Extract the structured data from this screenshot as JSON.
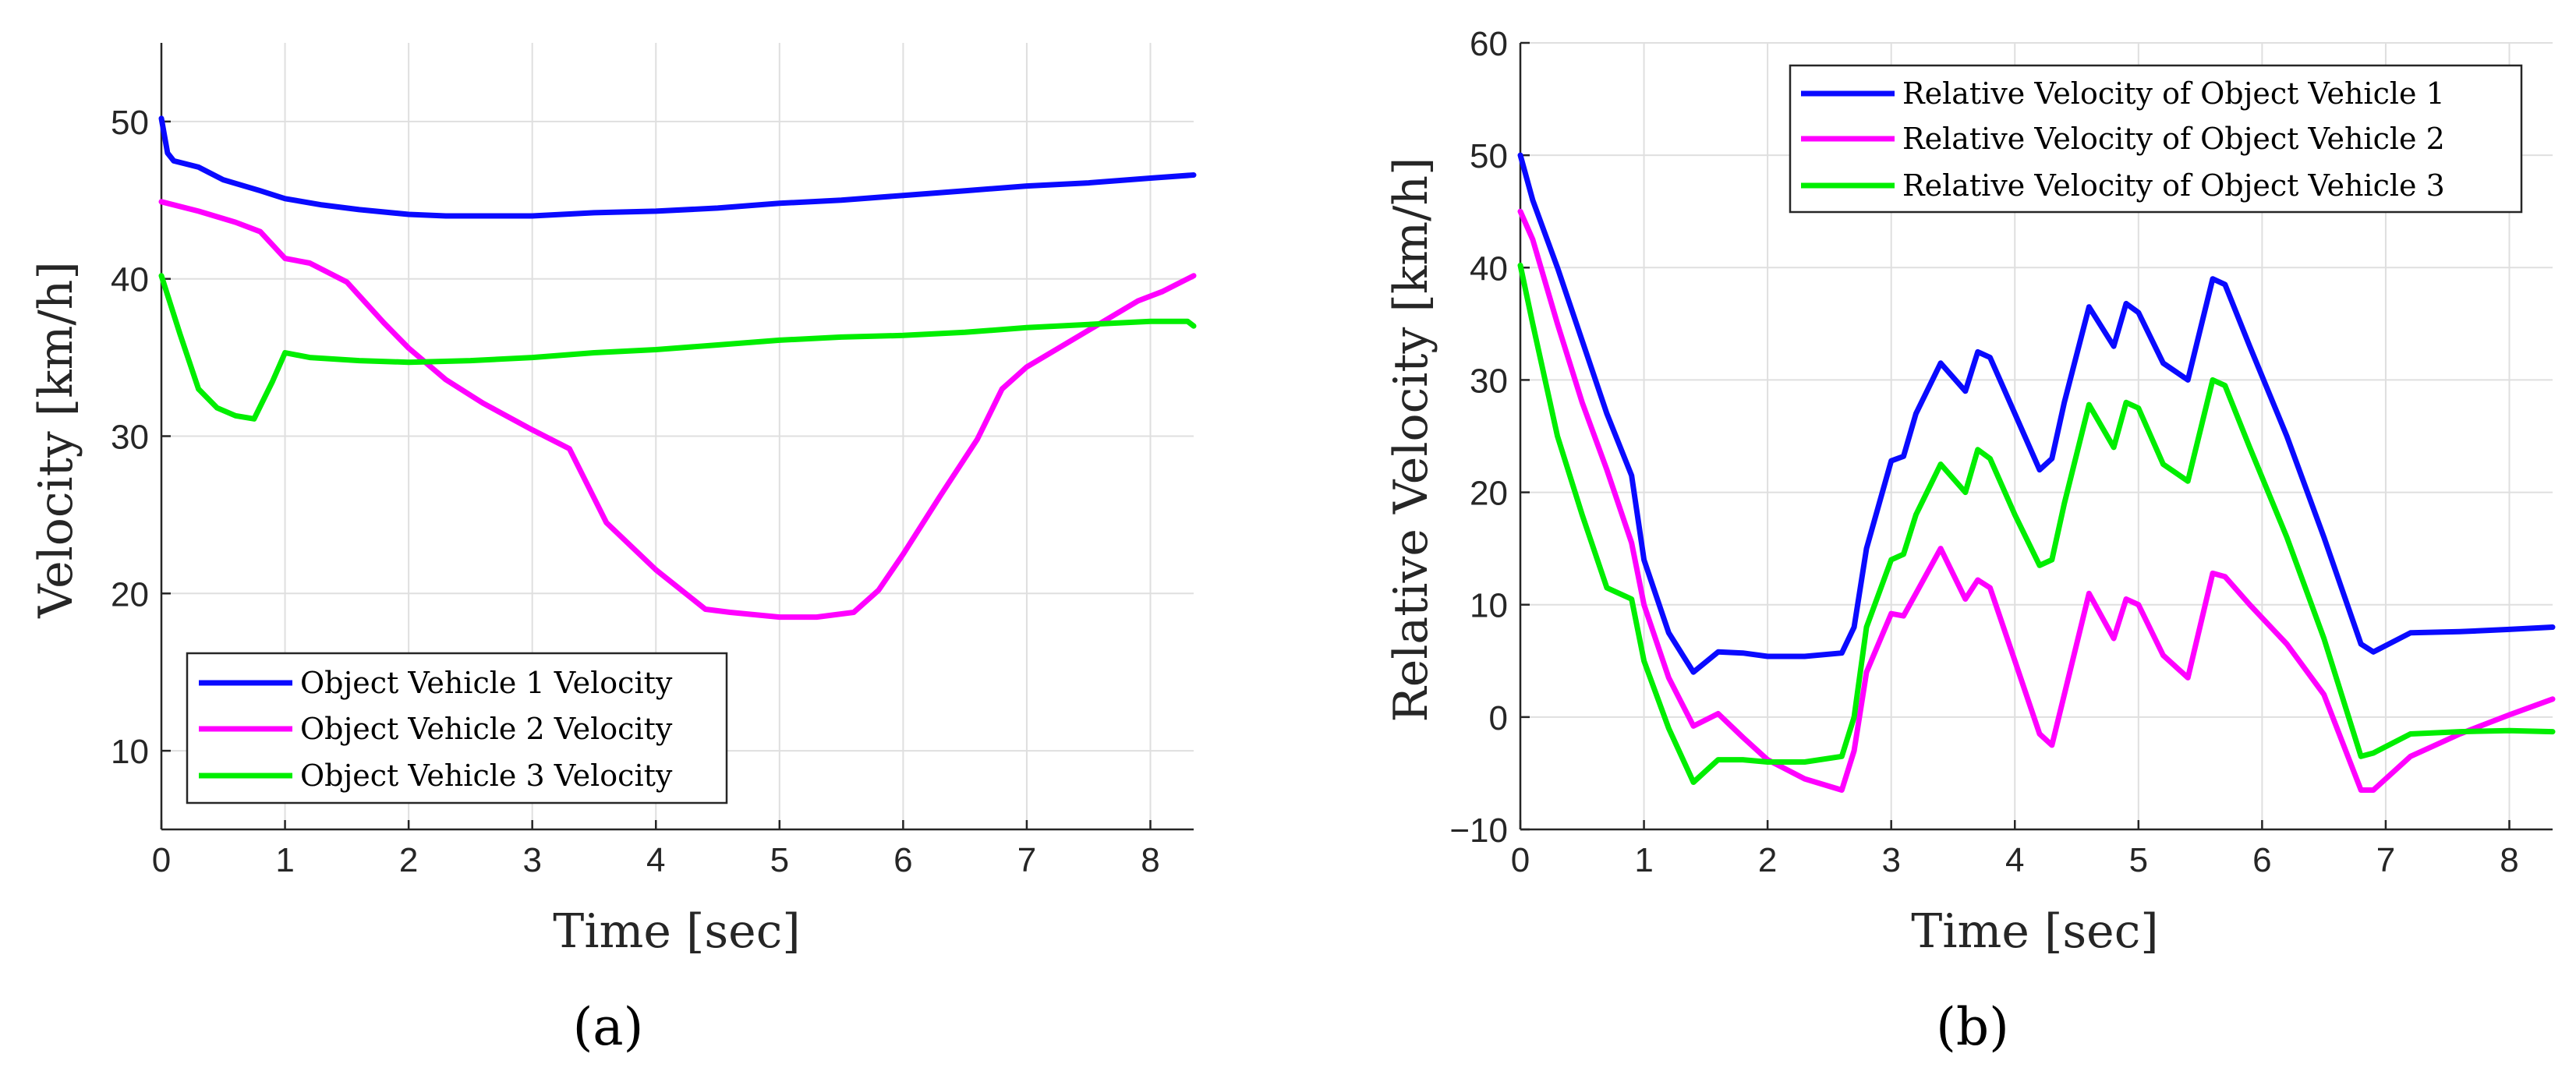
{
  "colors": {
    "series1": "#0a0aff",
    "series2": "#ff00ff",
    "series3": "#00ee00"
  },
  "chart_data": [
    {
      "type": "line",
      "panel_label": "(a)",
      "xlabel": "Time [sec]",
      "ylabel": "Velocity [km/h]",
      "xlim": [
        0,
        8.35
      ],
      "ylim": [
        5,
        55
      ],
      "xticks": [
        0,
        1,
        2,
        3,
        4,
        5,
        6,
        7,
        8
      ],
      "yticks": [
        10,
        20,
        30,
        40,
        50
      ],
      "grid": true,
      "legend_position": "bottom-left",
      "series": [
        {
          "name": "Object Vehicle 1 Velocity",
          "color": "#0a0aff",
          "x": [
            0,
            0.05,
            0.1,
            0.3,
            0.5,
            0.8,
            1.0,
            1.3,
            1.6,
            2.0,
            2.3,
            2.6,
            3.0,
            3.5,
            4.0,
            4.5,
            5.0,
            5.5,
            6.0,
            6.5,
            7.0,
            7.5,
            8.0,
            8.35
          ],
          "y": [
            50.2,
            48.0,
            47.5,
            47.1,
            46.3,
            45.6,
            45.1,
            44.7,
            44.4,
            44.1,
            44.0,
            44.0,
            44.0,
            44.2,
            44.3,
            44.5,
            44.8,
            45.0,
            45.3,
            45.6,
            45.9,
            46.1,
            46.4,
            46.6
          ]
        },
        {
          "name": "Object Vehicle 2 Velocity",
          "color": "#ff00ff",
          "x": [
            0,
            0.3,
            0.6,
            0.8,
            1.0,
            1.2,
            1.5,
            1.8,
            2.0,
            2.3,
            2.6,
            3.0,
            3.3,
            3.6,
            4.0,
            4.4,
            4.6,
            5.0,
            5.3,
            5.6,
            5.8,
            6.0,
            6.3,
            6.6,
            6.8,
            7.0,
            7.3,
            7.6,
            7.9,
            8.1,
            8.35
          ],
          "y": [
            44.9,
            44.3,
            43.6,
            43.0,
            41.3,
            41.0,
            39.8,
            37.2,
            35.6,
            33.6,
            32.1,
            30.4,
            29.2,
            24.5,
            21.5,
            19.0,
            18.8,
            18.5,
            18.5,
            18.8,
            20.2,
            22.5,
            26.2,
            29.8,
            33.0,
            34.4,
            35.8,
            37.2,
            38.6,
            39.2,
            40.2
          ]
        },
        {
          "name": "Object Vehicle 3 Velocity",
          "color": "#00ee00",
          "x": [
            0,
            0.15,
            0.3,
            0.45,
            0.6,
            0.75,
            0.9,
            1.0,
            1.2,
            1.6,
            2.0,
            2.5,
            3.0,
            3.5,
            4.0,
            4.5,
            5.0,
            5.5,
            6.0,
            6.5,
            7.0,
            7.5,
            8.0,
            8.3,
            8.35
          ],
          "y": [
            40.2,
            36.5,
            33.0,
            31.8,
            31.3,
            31.1,
            33.5,
            35.3,
            35.0,
            34.8,
            34.7,
            34.8,
            35.0,
            35.3,
            35.5,
            35.8,
            36.1,
            36.3,
            36.4,
            36.6,
            36.9,
            37.1,
            37.3,
            37.3,
            37.0
          ]
        }
      ]
    },
    {
      "type": "line",
      "panel_label": "(b)",
      "xlabel": "Time [sec]",
      "ylabel": "Relative Velocity [km/h]",
      "xlim": [
        0,
        8.35
      ],
      "ylim": [
        -10,
        60
      ],
      "xticks": [
        0,
        1,
        2,
        3,
        4,
        5,
        6,
        7,
        8
      ],
      "yticks": [
        -10,
        0,
        10,
        20,
        30,
        40,
        50,
        60
      ],
      "grid": true,
      "legend_position": "top-right",
      "series": [
        {
          "name": "Relative Velocity of Object Vehicle 1",
          "color": "#0a0aff",
          "x": [
            0,
            0.1,
            0.3,
            0.5,
            0.7,
            0.9,
            1.0,
            1.2,
            1.4,
            1.6,
            1.8,
            2.0,
            2.3,
            2.6,
            2.7,
            2.8,
            3.0,
            3.1,
            3.2,
            3.4,
            3.6,
            3.7,
            3.8,
            4.0,
            4.2,
            4.3,
            4.4,
            4.6,
            4.8,
            4.9,
            5.0,
            5.2,
            5.4,
            5.6,
            5.7,
            5.9,
            6.2,
            6.5,
            6.8,
            6.9,
            7.2,
            7.6,
            8.0,
            8.35
          ],
          "y": [
            50.0,
            46.0,
            40.0,
            33.5,
            27.0,
            21.5,
            14.0,
            7.5,
            4.0,
            5.8,
            5.7,
            5.4,
            5.4,
            5.7,
            8.0,
            15.0,
            22.8,
            23.2,
            27.0,
            31.5,
            29.0,
            32.5,
            32.0,
            27.0,
            22.0,
            23.0,
            28.0,
            36.5,
            33.0,
            36.8,
            36.0,
            31.5,
            30.0,
            39.0,
            38.5,
            33.0,
            25.0,
            16.0,
            6.5,
            5.8,
            7.5,
            7.6,
            7.8,
            8.0
          ]
        },
        {
          "name": "Relative Velocity of Object Vehicle 2",
          "color": "#ff00ff",
          "x": [
            0,
            0.1,
            0.3,
            0.5,
            0.7,
            0.9,
            1.0,
            1.2,
            1.4,
            1.6,
            1.8,
            2.0,
            2.3,
            2.6,
            2.7,
            2.8,
            3.0,
            3.1,
            3.2,
            3.4,
            3.6,
            3.7,
            3.8,
            4.0,
            4.2,
            4.3,
            4.4,
            4.6,
            4.8,
            4.9,
            5.0,
            5.2,
            5.4,
            5.6,
            5.7,
            5.9,
            6.2,
            6.5,
            6.8,
            6.9,
            7.2,
            7.6,
            8.0,
            8.35
          ],
          "y": [
            45.0,
            42.5,
            35.0,
            28.0,
            22.0,
            15.5,
            10.0,
            3.5,
            -0.8,
            0.3,
            -1.8,
            -3.8,
            -5.5,
            -6.5,
            -3.0,
            4.0,
            9.2,
            9.0,
            11.0,
            15.0,
            10.5,
            12.2,
            11.5,
            5.0,
            -1.5,
            -2.5,
            2.0,
            11.0,
            7.0,
            10.5,
            10.0,
            5.5,
            3.5,
            12.8,
            12.5,
            10.0,
            6.5,
            2.0,
            -6.5,
            -6.5,
            -3.5,
            -1.5,
            0.2,
            1.6
          ]
        },
        {
          "name": "Relative Velocity of Object Vehicle 3",
          "color": "#00ee00",
          "x": [
            0,
            0.1,
            0.3,
            0.5,
            0.7,
            0.9,
            1.0,
            1.2,
            1.4,
            1.6,
            1.8,
            2.0,
            2.3,
            2.6,
            2.7,
            2.8,
            3.0,
            3.1,
            3.2,
            3.4,
            3.6,
            3.7,
            3.8,
            4.0,
            4.2,
            4.3,
            4.4,
            4.6,
            4.8,
            4.9,
            5.0,
            5.2,
            5.4,
            5.6,
            5.7,
            5.9,
            6.2,
            6.5,
            6.8,
            6.9,
            7.2,
            7.6,
            8.0,
            8.35
          ],
          "y": [
            40.2,
            35.0,
            25.0,
            18.0,
            11.5,
            10.5,
            5.0,
            -1.0,
            -5.8,
            -3.8,
            -3.8,
            -4.0,
            -4.0,
            -3.5,
            0.0,
            8.0,
            14.0,
            14.5,
            18.0,
            22.5,
            20.0,
            23.8,
            23.0,
            18.0,
            13.5,
            14.0,
            19.0,
            27.8,
            24.0,
            28.0,
            27.5,
            22.5,
            21.0,
            30.0,
            29.5,
            24.0,
            16.0,
            7.0,
            -3.5,
            -3.2,
            -1.5,
            -1.3,
            -1.2,
            -1.3
          ]
        }
      ]
    }
  ]
}
